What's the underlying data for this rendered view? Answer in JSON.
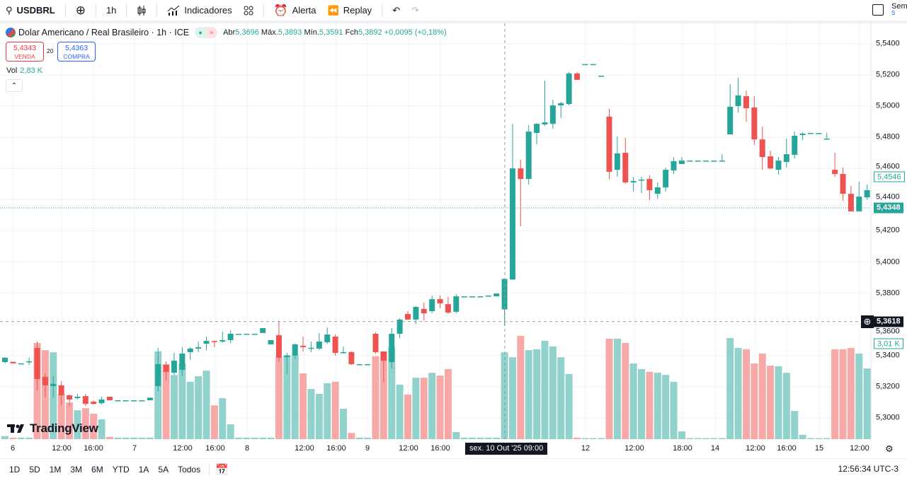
{
  "toolbar": {
    "symbol": "USDBRL",
    "interval": "1h",
    "indicators": "Indicadores",
    "alert": "Alerta",
    "replay": "Replay",
    "right_label": "Sem",
    "right_sub": "S"
  },
  "legend": {
    "title": "Dolar Americano / Real Brasileiro · 1h · ICE",
    "open_label": "Abr",
    "open": "5,3696",
    "high_label": "Máx.",
    "high": "5,3893",
    "low_label": "Mín.",
    "low": "5,3591",
    "close_label": "Fch",
    "close": "5,3892",
    "change": "+0,0095 (+0,18%)"
  },
  "trade": {
    "sell_price": "5,4343",
    "sell_label": "VENDA",
    "spread": "20",
    "buy_price": "5,4363",
    "buy_label": "COMPRA"
  },
  "volume": {
    "label": "Vol",
    "value": "2,83 K",
    "axis_tag": "3,01 K"
  },
  "colors": {
    "up": "#26a69a",
    "down": "#ef5350",
    "up_vol": "#92d2cc",
    "down_vol": "#f7a9a7",
    "grid": "#f2f3f5",
    "accent": "#2962ff"
  },
  "price_axis": {
    "labels": [
      "5,5400",
      "5,5200",
      "5,5000",
      "5,4800",
      "5,4600",
      "5,4400",
      "5,4200",
      "5,4000",
      "5,3800",
      "5,3600",
      "5,3400",
      "5,3200",
      "5,3000"
    ],
    "levels": [
      5.54,
      5.52,
      5.5,
      5.48,
      5.46,
      5.44,
      5.42,
      5.4,
      5.38,
      5.36,
      5.34,
      5.32,
      5.3
    ],
    "last_price": "5,4348",
    "last_value": 5.4348,
    "ask_price": "5,4546",
    "ask_value": 5.4546,
    "crosshair_price": "5,3618",
    "crosshair_value": 5.3618
  },
  "time_axis": {
    "labels": [
      "6",
      "12:00",
      "16:00",
      "7",
      "12:00",
      "16:00",
      "8",
      "12:00",
      "16:00",
      "9",
      "12:00",
      "16:00",
      "12",
      "12:00",
      "18:00",
      "14",
      "12:00",
      "16:00",
      "15",
      "12:00"
    ],
    "crosshair_label": "sex. 10 Out '25   09:00"
  },
  "chart_data": {
    "type": "candlestick",
    "symbol": "USDBRL",
    "interval": "1h",
    "ylim": [
      5.29,
      5.545
    ],
    "candles_ohlcv": [
      [
        5.3358,
        5.339,
        5.335,
        5.3386,
        0.1
      ],
      [
        5.336,
        5.336,
        5.335,
        5.335,
        0.05
      ],
      [
        5.335,
        5.335,
        5.335,
        5.335,
        0.05
      ],
      [
        5.3363,
        5.3386,
        5.334,
        5.3363,
        0.05
      ],
      [
        5.3449,
        5.349,
        5.3177,
        5.3249,
        3.1
      ],
      [
        5.3263,
        5.3286,
        5.3131,
        5.3209,
        2.87
      ],
      [
        5.3204,
        5.3268,
        5.3131,
        5.3218,
        2.8
      ],
      [
        5.3209,
        5.3236,
        5.3082,
        5.3145,
        1.46
      ],
      [
        5.3145,
        5.315,
        5.3077,
        5.3118,
        1.18
      ],
      [
        5.3127,
        5.3154,
        5.3118,
        5.3136,
        0.93
      ],
      [
        5.314,
        5.3154,
        5.3077,
        5.309,
        1.0
      ],
      [
        5.3104,
        5.3113,
        5.3086,
        5.309,
        0.82
      ],
      [
        5.3095,
        5.3136,
        5.3086,
        5.3118,
        0.64
      ],
      [
        5.3136,
        5.3136,
        5.3113,
        5.3113,
        0.07
      ],
      [
        5.3113,
        5.3113,
        5.3113,
        5.3113,
        0.05
      ],
      [
        5.3113,
        5.3113,
        5.3113,
        5.3113,
        0.05
      ],
      [
        5.3113,
        5.3113,
        5.3113,
        5.3113,
        0.05
      ],
      [
        5.3113,
        5.3113,
        5.3113,
        5.3113,
        0.05
      ],
      [
        5.3113,
        5.313,
        5.3113,
        5.313,
        0.05
      ],
      [
        5.3204,
        5.3449,
        5.3172,
        5.3345,
        2.83
      ],
      [
        5.334,
        5.3363,
        5.324,
        5.3295,
        2.42
      ],
      [
        5.329,
        5.3417,
        5.3277,
        5.3367,
        2.07
      ],
      [
        5.3309,
        5.3454,
        5.3268,
        5.3413,
        2.44
      ],
      [
        5.3422,
        5.3454,
        5.3372,
        5.3445,
        1.85
      ],
      [
        5.3445,
        5.349,
        5.3422,
        5.3454,
        2.03
      ],
      [
        5.3476,
        5.3522,
        5.3435,
        5.3494,
        2.21
      ],
      [
        5.3494,
        5.3494,
        5.3454,
        5.349,
        1.09
      ],
      [
        5.349,
        5.3553,
        5.3481,
        5.3499,
        1.32
      ],
      [
        5.3499,
        5.3563,
        5.3481,
        5.354,
        0.48
      ],
      [
        5.354,
        5.354,
        5.354,
        5.354,
        0.05
      ],
      [
        5.354,
        5.354,
        5.354,
        5.354,
        0.05
      ],
      [
        5.354,
        5.354,
        5.354,
        5.354,
        0.05
      ],
      [
        5.3545,
        5.3576,
        5.3545,
        5.3576,
        0.05
      ],
      [
        5.3472,
        5.3499,
        5.3472,
        5.3499,
        0.05
      ],
      [
        5.3531,
        5.3622,
        5.3358,
        5.3386,
        2.64
      ],
      [
        5.339,
        5.3417,
        5.3281,
        5.3399,
        2.71
      ],
      [
        5.34,
        5.3476,
        5.3377,
        5.3472,
        2.71
      ],
      [
        5.3463,
        5.3522,
        5.3426,
        5.3454,
        2.12
      ],
      [
        5.3445,
        5.349,
        5.3422,
        5.345,
        1.62
      ],
      [
        5.3445,
        5.3544,
        5.3435,
        5.349,
        1.46
      ],
      [
        5.3485,
        5.358,
        5.3476,
        5.3535,
        1.8
      ],
      [
        5.3522,
        5.3535,
        5.34,
        5.3417,
        1.85
      ],
      [
        5.3417,
        5.3458,
        5.3413,
        5.3422,
        0.98
      ],
      [
        5.3422,
        5.3426,
        5.334,
        5.3345,
        0.2
      ],
      [
        5.3345,
        5.3345,
        5.3345,
        5.3345,
        0.05
      ],
      [
        5.3345,
        5.3345,
        5.3345,
        5.3345,
        0.05
      ],
      [
        5.354,
        5.3549,
        5.3413,
        5.3422,
        2.67
      ],
      [
        5.3426,
        5.3426,
        5.3231,
        5.3367,
        2.83
      ],
      [
        5.3358,
        5.3576,
        5.3318,
        5.354,
        2.96
      ],
      [
        5.354,
        5.364,
        5.3513,
        5.3631,
        1.76
      ],
      [
        5.3667,
        5.3685,
        5.3631,
        5.3631,
        1.44
      ],
      [
        5.3631,
        5.3717,
        5.3604,
        5.3712,
        1.98
      ],
      [
        5.3699,
        5.374,
        5.3626,
        5.3671,
        1.98
      ],
      [
        5.3685,
        5.3785,
        5.3671,
        5.3762,
        2.14
      ],
      [
        5.3762,
        5.3785,
        5.3703,
        5.3735,
        2.05
      ],
      [
        5.373,
        5.3776,
        5.3667,
        5.3676,
        2.26
      ],
      [
        5.3681,
        5.3794,
        5.3671,
        5.378,
        0.23
      ],
      [
        5.378,
        5.378,
        5.378,
        5.378,
        0.05
      ],
      [
        5.378,
        5.378,
        5.378,
        5.378,
        0.05
      ],
      [
        5.378,
        5.378,
        5.378,
        5.378,
        0.05
      ],
      [
        5.378,
        5.3785,
        5.378,
        5.3785,
        0.05
      ],
      [
        5.378,
        5.3798,
        5.378,
        5.3798,
        0.05
      ],
      [
        5.3696,
        5.3893,
        5.3591,
        5.3892,
        2.8
      ],
      [
        5.3888,
        5.4887,
        5.3885,
        5.4601,
        2.64
      ],
      [
        5.4601,
        5.4656,
        5.4229,
        5.4533,
        3.33
      ],
      [
        5.4533,
        5.4878,
        5.4497,
        5.4837,
        2.87
      ],
      [
        5.4828,
        5.4892,
        5.4756,
        5.4887,
        2.9
      ],
      [
        5.4883,
        5.5164,
        5.4874,
        5.4896,
        3.17
      ],
      [
        5.4887,
        5.5041,
        5.4856,
        5.5005,
        2.99
      ],
      [
        5.5005,
        5.5028,
        5.4924,
        5.5019,
        2.64
      ],
      [
        5.5014,
        5.5219,
        5.5005,
        5.521,
        2.1
      ],
      [
        5.521,
        5.5219,
        5.5169,
        5.5169,
        0.05
      ],
      [
        5.527,
        5.527,
        5.527,
        5.527,
        0.03
      ],
      [
        5.527,
        5.527,
        5.527,
        5.527,
        0.03
      ],
      [
        5.5196,
        5.5196,
        5.5196,
        5.5196,
        0.03
      ],
      [
        5.4933,
        5.4983,
        5.4533,
        5.4579,
        3.24
      ],
      [
        5.4592,
        5.4806,
        5.4547,
        5.4697,
        3.24
      ],
      [
        5.4701,
        5.4797,
        5.4502,
        5.4511,
        3.1
      ],
      [
        5.4511,
        5.4547,
        5.4452,
        5.452,
        2.44
      ],
      [
        5.4524,
        5.4547,
        5.4443,
        5.4529,
        2.26
      ],
      [
        5.4533,
        5.4556,
        5.4397,
        5.4461,
        2.17
      ],
      [
        5.4438,
        5.4511,
        5.4406,
        5.4479,
        2.14
      ],
      [
        5.4479,
        5.4606,
        5.4452,
        5.4592,
        2.07
      ],
      [
        5.4588,
        5.4674,
        5.4565,
        5.4647,
        1.85
      ],
      [
        5.4629,
        5.4674,
        5.4629,
        5.4651,
        0.25
      ],
      [
        5.4651,
        5.4651,
        5.4651,
        5.4651,
        0.03
      ],
      [
        5.4651,
        5.4651,
        5.4651,
        5.4651,
        0.03
      ],
      [
        5.4651,
        5.4651,
        5.4651,
        5.4651,
        0.03
      ],
      [
        5.4651,
        5.4651,
        5.4651,
        5.4651,
        0.03
      ],
      [
        5.4651,
        5.4692,
        5.4651,
        5.4651,
        0.03
      ],
      [
        5.4819,
        5.5141,
        5.4819,
        5.4996,
        3.26
      ],
      [
        5.5001,
        5.5182,
        5.496,
        5.5069,
        2.94
      ],
      [
        5.5064,
        5.51,
        5.4901,
        5.4987,
        2.9
      ],
      [
        5.4992,
        5.5064,
        5.4751,
        5.4787,
        2.44
      ],
      [
        5.4787,
        5.4869,
        5.4592,
        5.4674,
        2.76
      ],
      [
        5.4678,
        5.4715,
        5.4597,
        5.4601,
        2.37
      ],
      [
        5.4592,
        5.4674,
        5.4561,
        5.4651,
        2.35
      ],
      [
        5.4642,
        5.4792,
        5.4606,
        5.4692,
        2.14
      ],
      [
        5.4688,
        5.4837,
        5.4665,
        5.481,
        0.91
      ],
      [
        5.4815,
        5.4833,
        5.4783,
        5.4824,
        0.14
      ],
      [
        5.4828,
        5.4828,
        5.4828,
        5.4828,
        0.03
      ],
      [
        5.4828,
        5.4828,
        5.4828,
        5.4828,
        0.03
      ],
      [
        5.4792,
        5.483,
        5.4792,
        5.4792,
        0.03
      ],
      [
        5.4592,
        5.4701,
        5.4547,
        5.4565,
        2.9
      ],
      [
        5.4565,
        5.4606,
        5.4393,
        5.4438,
        2.9
      ],
      [
        5.4438,
        5.4488,
        5.4325,
        5.4325,
        2.94
      ],
      [
        5.4325,
        5.4515,
        5.4325,
        5.442,
        2.76
      ],
      [
        5.4415,
        5.4497,
        5.44,
        5.4461,
        2.28
      ]
    ]
  },
  "bottom": {
    "ranges": [
      "1D",
      "5D",
      "1M",
      "3M",
      "6M",
      "YTD",
      "1A",
      "5A",
      "Todos"
    ],
    "clock": "12:56:34 UTC-3"
  },
  "branding": {
    "logo": "TradingView"
  }
}
